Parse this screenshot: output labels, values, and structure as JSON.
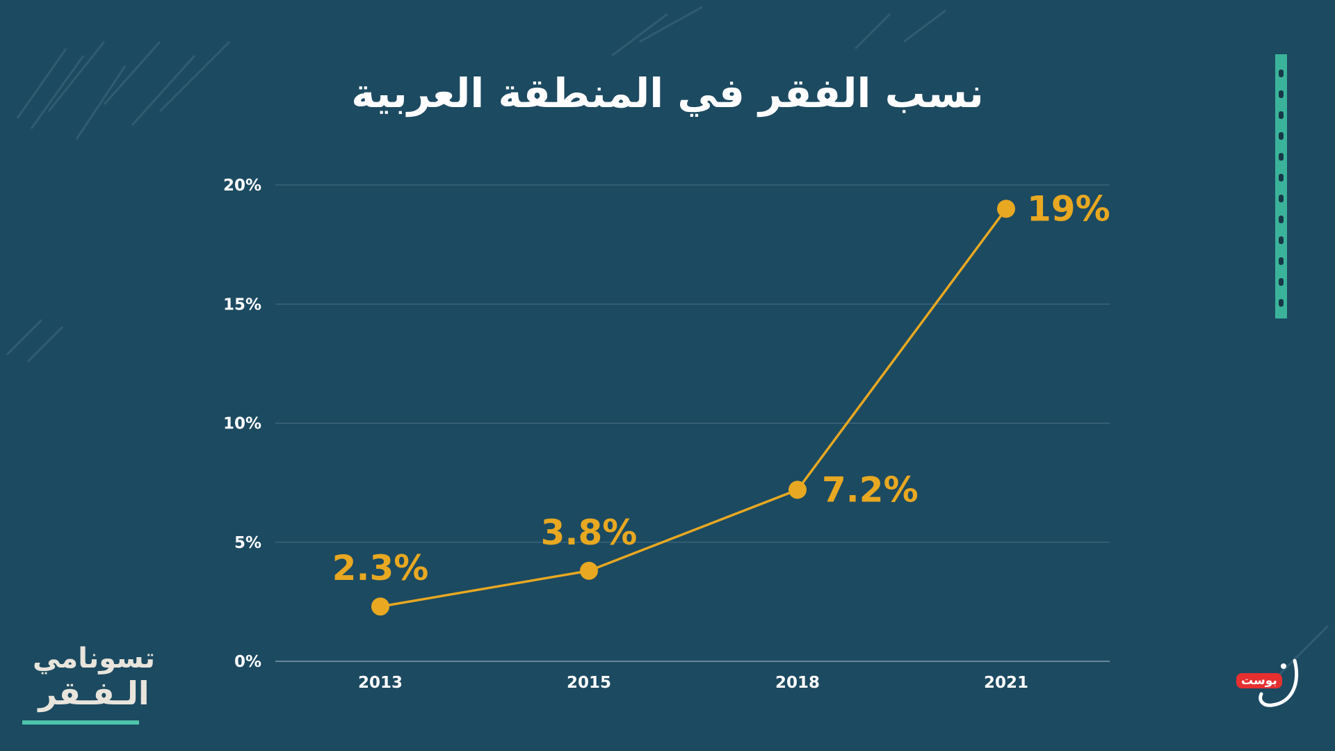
{
  "chart_data": {
    "type": "line",
    "title": "نسب الفقر في المنطقة العربية",
    "categories": [
      "2013",
      "2015",
      "2018",
      "2021"
    ],
    "series": [
      {
        "values": [
          2.3,
          3.8,
          7.2,
          19
        ]
      }
    ],
    "data_labels": [
      "2.3%",
      "3.8%",
      "7.2%",
      "19%"
    ],
    "y_ticks": [
      0,
      5,
      10,
      15,
      20
    ],
    "y_tick_labels": [
      "0%",
      "5%",
      "10%",
      "15%",
      "20%"
    ],
    "ylim": [
      0,
      20
    ],
    "xlabel": "",
    "ylabel": "",
    "grid": true,
    "legend": "none",
    "colors": {
      "background": "#1c4a61",
      "line": "#e8a821",
      "grid": "#6f8fa0",
      "text": "#ffffff"
    }
  },
  "branding": {
    "series_logo_line1": "تسونامي",
    "series_logo_line2": "الـفـقر",
    "brand_badge": "بوست",
    "brand_mark": "ن"
  }
}
